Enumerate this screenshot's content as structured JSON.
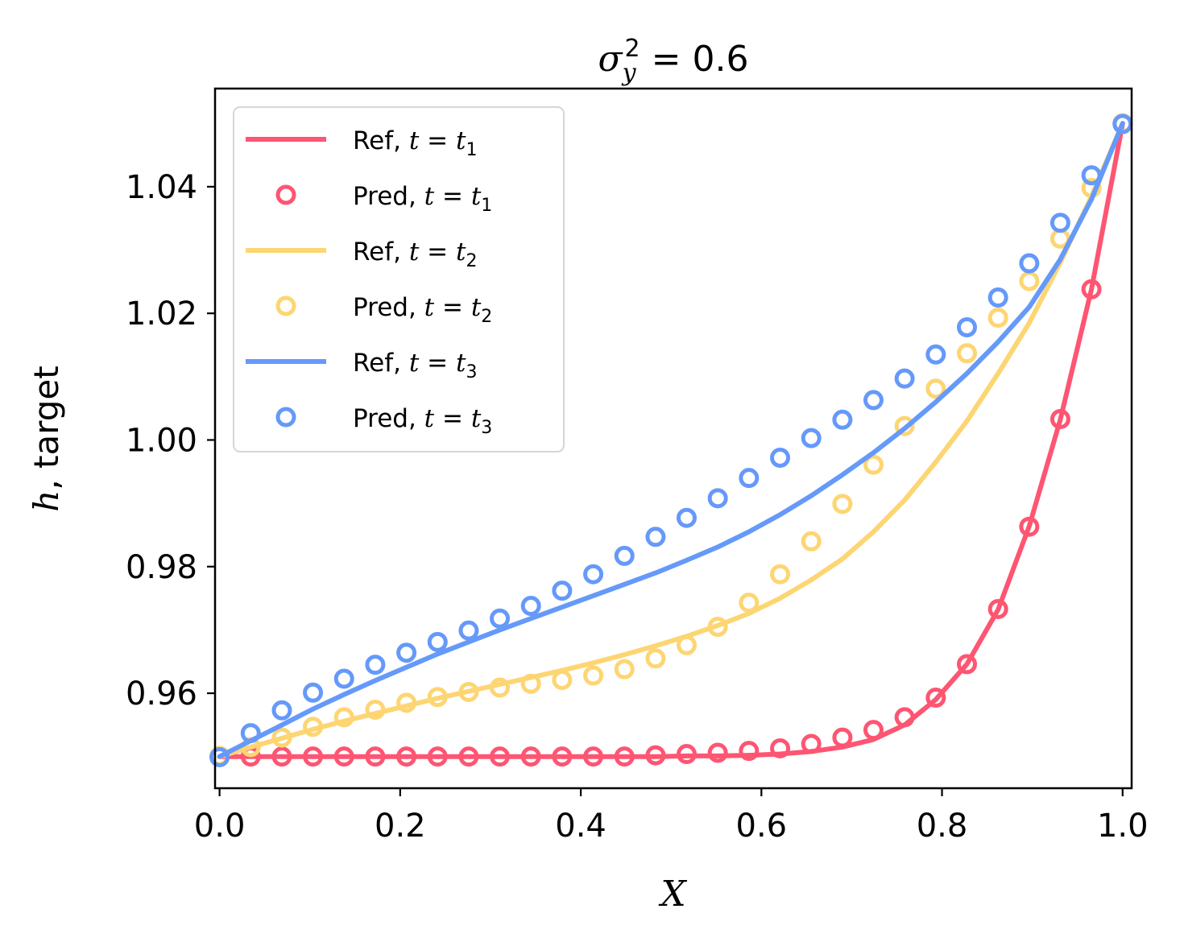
{
  "chart_data": {
    "type": "line",
    "title": "σ_y^2 = 0.6",
    "title_parts": {
      "sigma": "σ",
      "sub": "y",
      "sup": "2",
      "rest": " = 0.6"
    },
    "xlabel": "X",
    "ylabel_italic": "h",
    "ylabel_rest": ", target",
    "xlim": [
      -0.005,
      1.01
    ],
    "ylim": [
      0.945,
      1.0555
    ],
    "xticks": [
      0.0,
      0.2,
      0.4,
      0.6,
      0.8,
      1.0
    ],
    "xtick_labels": [
      "0.0",
      "0.2",
      "0.4",
      "0.6",
      "0.8",
      "1.0"
    ],
    "yticks": [
      0.96,
      0.98,
      1.0,
      1.02,
      1.04
    ],
    "ytick_labels": [
      "0.96",
      "0.98",
      "1.00",
      "1.02",
      "1.04"
    ],
    "grid": false,
    "legend_position": "top-left",
    "colors": {
      "t1": "#fe5572",
      "t2": "#fdd572",
      "t3": "#6599fa"
    },
    "x": [
      0.0,
      0.0345,
      0.069,
      0.1034,
      0.1379,
      0.1724,
      0.2069,
      0.2414,
      0.2759,
      0.3103,
      0.3448,
      0.3793,
      0.4138,
      0.4483,
      0.4828,
      0.5172,
      0.5517,
      0.5862,
      0.6207,
      0.6552,
      0.6897,
      0.7241,
      0.7586,
      0.7931,
      0.8276,
      0.8621,
      0.8966,
      0.931,
      0.9655,
      1.0
    ],
    "series": [
      {
        "name_prefix": "Ref, ",
        "name_t": "t",
        "name_sub": "1",
        "kind": "line",
        "color_key": "t1",
        "values": [
          0.95,
          0.95,
          0.95,
          0.95,
          0.95,
          0.95,
          0.95,
          0.95,
          0.95,
          0.95,
          0.95,
          0.95,
          0.95,
          0.95,
          0.95,
          0.9501,
          0.9501,
          0.9502,
          0.9504,
          0.9508,
          0.9515,
          0.9527,
          0.955,
          0.959,
          0.9646,
          0.9732,
          0.9864,
          1.0032,
          1.0238,
          1.05
        ]
      },
      {
        "name_prefix": "Pred, ",
        "name_t": "t",
        "name_sub": "1",
        "kind": "markers",
        "color_key": "t1",
        "values": [
          0.95,
          0.95,
          0.95,
          0.95,
          0.95,
          0.95,
          0.95,
          0.95,
          0.95,
          0.95,
          0.95,
          0.95,
          0.95,
          0.95,
          0.9502,
          0.9504,
          0.9506,
          0.9509,
          0.9513,
          0.952,
          0.953,
          0.9542,
          0.9562,
          0.9593,
          0.9646,
          0.9733,
          0.9863,
          1.0033,
          1.0238,
          1.05
        ]
      },
      {
        "name_prefix": "Ref, ",
        "name_t": "t",
        "name_sub": "2",
        "kind": "line",
        "color_key": "t2",
        "values": [
          0.95,
          0.9515,
          0.9529,
          0.9543,
          0.9556,
          0.9568,
          0.958,
          0.9592,
          0.9603,
          0.9614,
          0.9625,
          0.9636,
          0.9648,
          0.9661,
          0.9675,
          0.969,
          0.9707,
          0.9726,
          0.975,
          0.9779,
          0.9812,
          0.9855,
          0.9905,
          0.9965,
          1.003,
          1.0105,
          1.0185,
          1.028,
          1.0385,
          1.05
        ]
      },
      {
        "name_prefix": "Pred, ",
        "name_t": "t",
        "name_sub": "2",
        "kind": "markers",
        "color_key": "t2",
        "values": [
          0.9501,
          0.9515,
          0.953,
          0.9547,
          0.9562,
          0.9574,
          0.9585,
          0.9594,
          0.9602,
          0.9609,
          0.9615,
          0.9621,
          0.9628,
          0.9638,
          0.9655,
          0.9676,
          0.9705,
          0.9743,
          0.9788,
          0.984,
          0.9899,
          0.9961,
          1.0022,
          1.0081,
          1.0137,
          1.0193,
          1.0251,
          1.0318,
          1.0398,
          1.05
        ]
      },
      {
        "name_prefix": "Ref, ",
        "name_t": "t",
        "name_sub": "3",
        "kind": "line",
        "color_key": "t3",
        "values": [
          0.95,
          0.9525,
          0.955,
          0.9575,
          0.9598,
          0.962,
          0.9641,
          0.9662,
          0.9681,
          0.97,
          0.9718,
          0.9736,
          0.9754,
          0.9772,
          0.979,
          0.981,
          0.9831,
          0.9855,
          0.9882,
          0.9912,
          0.9945,
          0.998,
          1.0018,
          1.006,
          1.0105,
          1.0155,
          1.021,
          1.0285,
          1.038,
          1.05
        ]
      },
      {
        "name_prefix": "Pred, ",
        "name_t": "t",
        "name_sub": "3",
        "kind": "markers",
        "color_key": "t3",
        "values": [
          0.9499,
          0.9537,
          0.9573,
          0.9601,
          0.9623,
          0.9645,
          0.9664,
          0.9681,
          0.9699,
          0.9718,
          0.9738,
          0.9762,
          0.9788,
          0.9817,
          0.9847,
          0.9877,
          0.9908,
          0.994,
          0.9972,
          1.0003,
          1.0032,
          1.0063,
          1.0097,
          1.0135,
          1.0178,
          1.0225,
          1.0279,
          1.0343,
          1.0418,
          1.0499
        ]
      }
    ]
  }
}
